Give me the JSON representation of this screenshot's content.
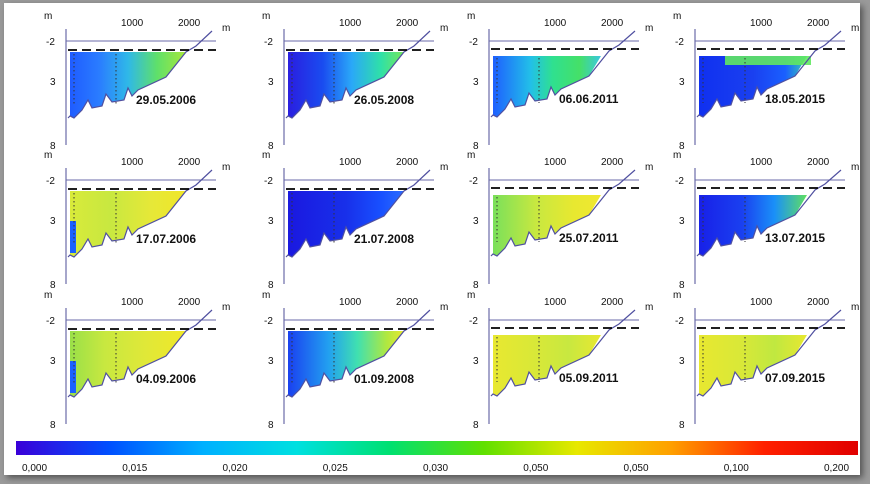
{
  "chart_data": {
    "type": "heatmap",
    "description_kind": "cross-section panels colored by value",
    "x_unit": "m",
    "y_unit": "m",
    "x_ticks": [
      "1000",
      "2000"
    ],
    "y_ticks": [
      "-2",
      "3",
      "8"
    ],
    "colorbar": {
      "labels": [
        "0,000",
        "0,015",
        "0,020",
        "0,025",
        "0,030",
        "0,050",
        "0,050",
        "0,100",
        "0,200"
      ],
      "colors": [
        "#3a00d8",
        "#0050ff",
        "#00b0ff",
        "#00e0e0",
        "#00e070",
        "#60e000",
        "#e8e800",
        "#ffa000",
        "#ff2000",
        "#e00000"
      ]
    },
    "panels": [
      {
        "date": "29.05.2006",
        "waterline": "dashed",
        "fill": [
          [
            "#1f5cff",
            0
          ],
          [
            "#2a7cff",
            0.25
          ],
          [
            "#2fb8e8",
            0.5
          ],
          [
            "#5fe06a",
            0.75
          ],
          [
            "#a8e83a",
            1
          ]
        ],
        "fill_top": 0.0
      },
      {
        "date": "26.05.2008",
        "waterline": "dashed",
        "fill": [
          [
            "#2a1ee0",
            0
          ],
          [
            "#1a4cf0",
            0.3
          ],
          [
            "#2aa8f8",
            0.55
          ],
          [
            "#2fe0a8",
            0.8
          ],
          [
            "#74e85a",
            1
          ]
        ],
        "fill_top": 0.0
      },
      {
        "date": "06.06.2011",
        "waterline": "dashed",
        "fill": [
          [
            "#1e60ff",
            0
          ],
          [
            "#22c0e8",
            0.35
          ],
          [
            "#2fe090",
            0.55
          ],
          [
            "#45e068",
            0.8
          ],
          [
            "#3ac8e0",
            1
          ]
        ],
        "fill_top": 0.25
      },
      {
        "date": "18.05.2015",
        "waterline": "dashed",
        "fill": [
          [
            "#1030f0",
            0
          ],
          [
            "#1a40f0",
            0.5
          ],
          [
            "#1a60ff",
            0.8
          ],
          [
            "#3ad0b0",
            1
          ]
        ],
        "fill_top": 0.25,
        "surface_band": "#60e860"
      },
      {
        "date": "17.07.2006",
        "waterline": "dashed",
        "fill": [
          [
            "#d8ea3a",
            0
          ],
          [
            "#c8e840",
            0.35
          ],
          [
            "#e6e838",
            0.7
          ],
          [
            "#f0e628",
            1
          ]
        ],
        "fill_top": 0.0,
        "side_band": "#1a60ff"
      },
      {
        "date": "21.07.2008",
        "waterline": "dashed",
        "fill": [
          [
            "#1a18e0",
            0
          ],
          [
            "#1830ea",
            0.5
          ],
          [
            "#1850ff",
            0.8
          ],
          [
            "#2a6cff",
            1
          ]
        ],
        "fill_top": 0.0
      },
      {
        "date": "25.07.2011",
        "waterline": "dashed",
        "fill": [
          [
            "#7ae05a",
            0
          ],
          [
            "#c8e840",
            0.4
          ],
          [
            "#e8e830",
            0.75
          ],
          [
            "#f0e830",
            1
          ]
        ],
        "fill_top": 0.25
      },
      {
        "date": "13.07.2015",
        "waterline": "dashed",
        "fill": [
          [
            "#1820e8",
            0
          ],
          [
            "#1a40f0",
            0.4
          ],
          [
            "#1a90f8",
            0.7
          ],
          [
            "#60e060",
            1
          ]
        ],
        "fill_top": 0.25
      },
      {
        "date": "04.09.2006",
        "waterline": "dashed",
        "fill": [
          [
            "#9ae048",
            0
          ],
          [
            "#c8e840",
            0.3
          ],
          [
            "#e0e838",
            0.65
          ],
          [
            "#f0e828",
            1
          ]
        ],
        "fill_top": 0.0,
        "side_band": "#1a60ff"
      },
      {
        "date": "01.09.2008",
        "waterline": "dashed",
        "fill": [
          [
            "#1a40f0",
            0
          ],
          [
            "#22a0f0",
            0.35
          ],
          [
            "#40e0b0",
            0.6
          ],
          [
            "#b0e840",
            0.85
          ],
          [
            "#e8e830",
            1
          ]
        ],
        "fill_top": 0.0
      },
      {
        "date": "05.09.2011",
        "waterline": "dashed",
        "fill": [
          [
            "#e8e830",
            0
          ],
          [
            "#d8e838",
            0.4
          ],
          [
            "#c8e840",
            0.7
          ],
          [
            "#e8e830",
            1
          ]
        ],
        "fill_top": 0.25
      },
      {
        "date": "07.09.2015",
        "waterline": "dashed",
        "fill": [
          [
            "#e8e830",
            0
          ],
          [
            "#d8e838",
            0.4
          ],
          [
            "#c0e840",
            0.7
          ],
          [
            "#e8e830",
            1
          ]
        ],
        "fill_top": 0.25
      }
    ]
  }
}
